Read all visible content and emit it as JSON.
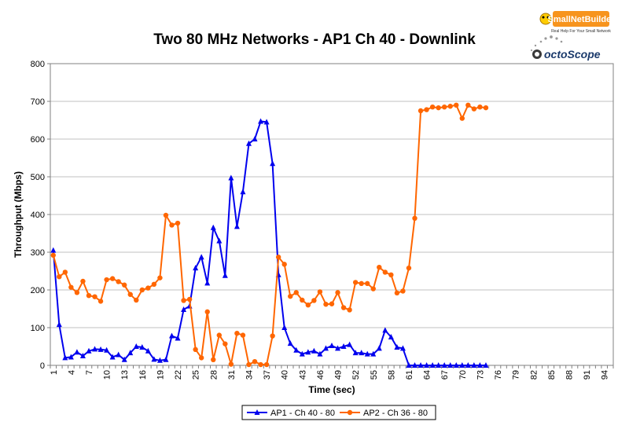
{
  "logos": {
    "snb_name": "SmallNetBuilder",
    "snb_tagline": "Real Help For Your Small Network",
    "octo_name": "octoScope"
  },
  "colors": {
    "ap1": "#0000ee",
    "ap2": "#ff6600",
    "axis": "#808080",
    "grid": "#c0c0c0"
  },
  "chart_data": {
    "type": "line",
    "title": "Two 80 MHz Networks - AP1 Ch 40 - Downlink",
    "xlabel": "Time (sec)",
    "ylabel": "Throughput (Mbps)",
    "ylim": [
      0,
      800
    ],
    "yticks": [
      0,
      100,
      200,
      300,
      400,
      500,
      600,
      700,
      800
    ],
    "xlim": [
      1,
      95
    ],
    "xticks": [
      1,
      4,
      7,
      10,
      13,
      16,
      19,
      22,
      25,
      28,
      31,
      34,
      37,
      40,
      43,
      46,
      49,
      52,
      55,
      58,
      61,
      64,
      67,
      70,
      73,
      76,
      79,
      82,
      85,
      88,
      91,
      94
    ],
    "grid": "horizontal",
    "legend": "bottom-center",
    "series": [
      {
        "name": "AP1 - Ch 40 - 80",
        "marker": "triangle",
        "start_x": 1,
        "values": [
          305,
          108,
          20,
          22,
          35,
          25,
          38,
          43,
          42,
          40,
          22,
          28,
          15,
          33,
          50,
          48,
          38,
          16,
          13,
          15,
          78,
          72,
          148,
          157,
          258,
          287,
          218,
          365,
          330,
          238,
          497,
          368,
          460,
          588,
          600,
          647,
          645,
          535,
          240,
          100,
          58,
          40,
          30,
          35,
          38,
          30,
          45,
          52,
          45,
          50,
          55,
          33,
          33,
          30,
          30,
          45,
          93,
          75,
          48,
          45,
          0,
          0,
          0,
          0,
          0,
          0,
          0,
          0,
          0,
          0,
          0,
          0,
          0,
          0
        ]
      },
      {
        "name": "AP2 - Ch 36 - 80",
        "marker": "circle",
        "start_x": 1,
        "values": [
          292,
          235,
          247,
          207,
          193,
          223,
          185,
          182,
          170,
          227,
          230,
          222,
          213,
          188,
          173,
          200,
          205,
          215,
          232,
          398,
          372,
          377,
          172,
          175,
          42,
          20,
          142,
          15,
          80,
          57,
          3,
          85,
          80,
          2,
          10,
          2,
          2,
          78,
          287,
          268,
          183,
          193,
          173,
          160,
          172,
          195,
          162,
          163,
          193,
          153,
          147,
          220,
          217,
          217,
          203,
          260,
          247,
          240,
          192,
          197,
          258,
          390,
          675,
          678,
          685,
          683,
          685,
          687,
          690,
          655,
          690,
          680,
          685,
          683
        ]
      }
    ]
  }
}
